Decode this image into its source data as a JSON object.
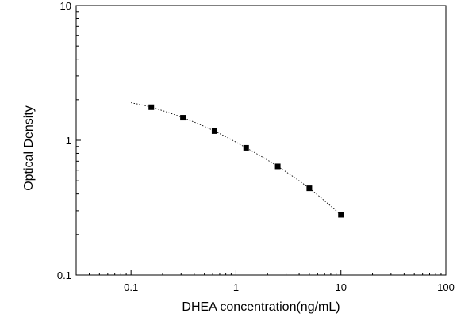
{
  "chart_data": {
    "type": "scatter",
    "title": "",
    "xlabel": "DHEA concentration(ng/mL)",
    "ylabel": "Optical Density",
    "x_scale": "log",
    "y_scale": "log",
    "xlim": [
      0.03,
      100
    ],
    "ylim": [
      0.1,
      10
    ],
    "x_ticks": [
      {
        "value": 0.1,
        "label": "0.1"
      },
      {
        "value": 1,
        "label": "1"
      },
      {
        "value": 10,
        "label": "10"
      },
      {
        "value": 100,
        "label": "100"
      }
    ],
    "y_ticks": [
      {
        "value": 0.1,
        "label": "0.1"
      },
      {
        "value": 1,
        "label": "1"
      },
      {
        "value": 10,
        "label": "10"
      }
    ],
    "grid": false,
    "legend": "none",
    "series": [
      {
        "marker": "square",
        "color": "#000000",
        "x": [
          0.156,
          0.3125,
          0.625,
          1.25,
          2.5,
          5,
          10
        ],
        "y": [
          1.76,
          1.47,
          1.17,
          0.88,
          0.64,
          0.44,
          0.28
        ]
      }
    ],
    "fit_curve": {
      "style": "dotted",
      "color": "#000000",
      "x": [
        0.1,
        0.156,
        0.3125,
        0.625,
        1.25,
        2.5,
        5,
        10
      ],
      "y": [
        1.9,
        1.76,
        1.47,
        1.17,
        0.88,
        0.64,
        0.44,
        0.28
      ]
    }
  }
}
